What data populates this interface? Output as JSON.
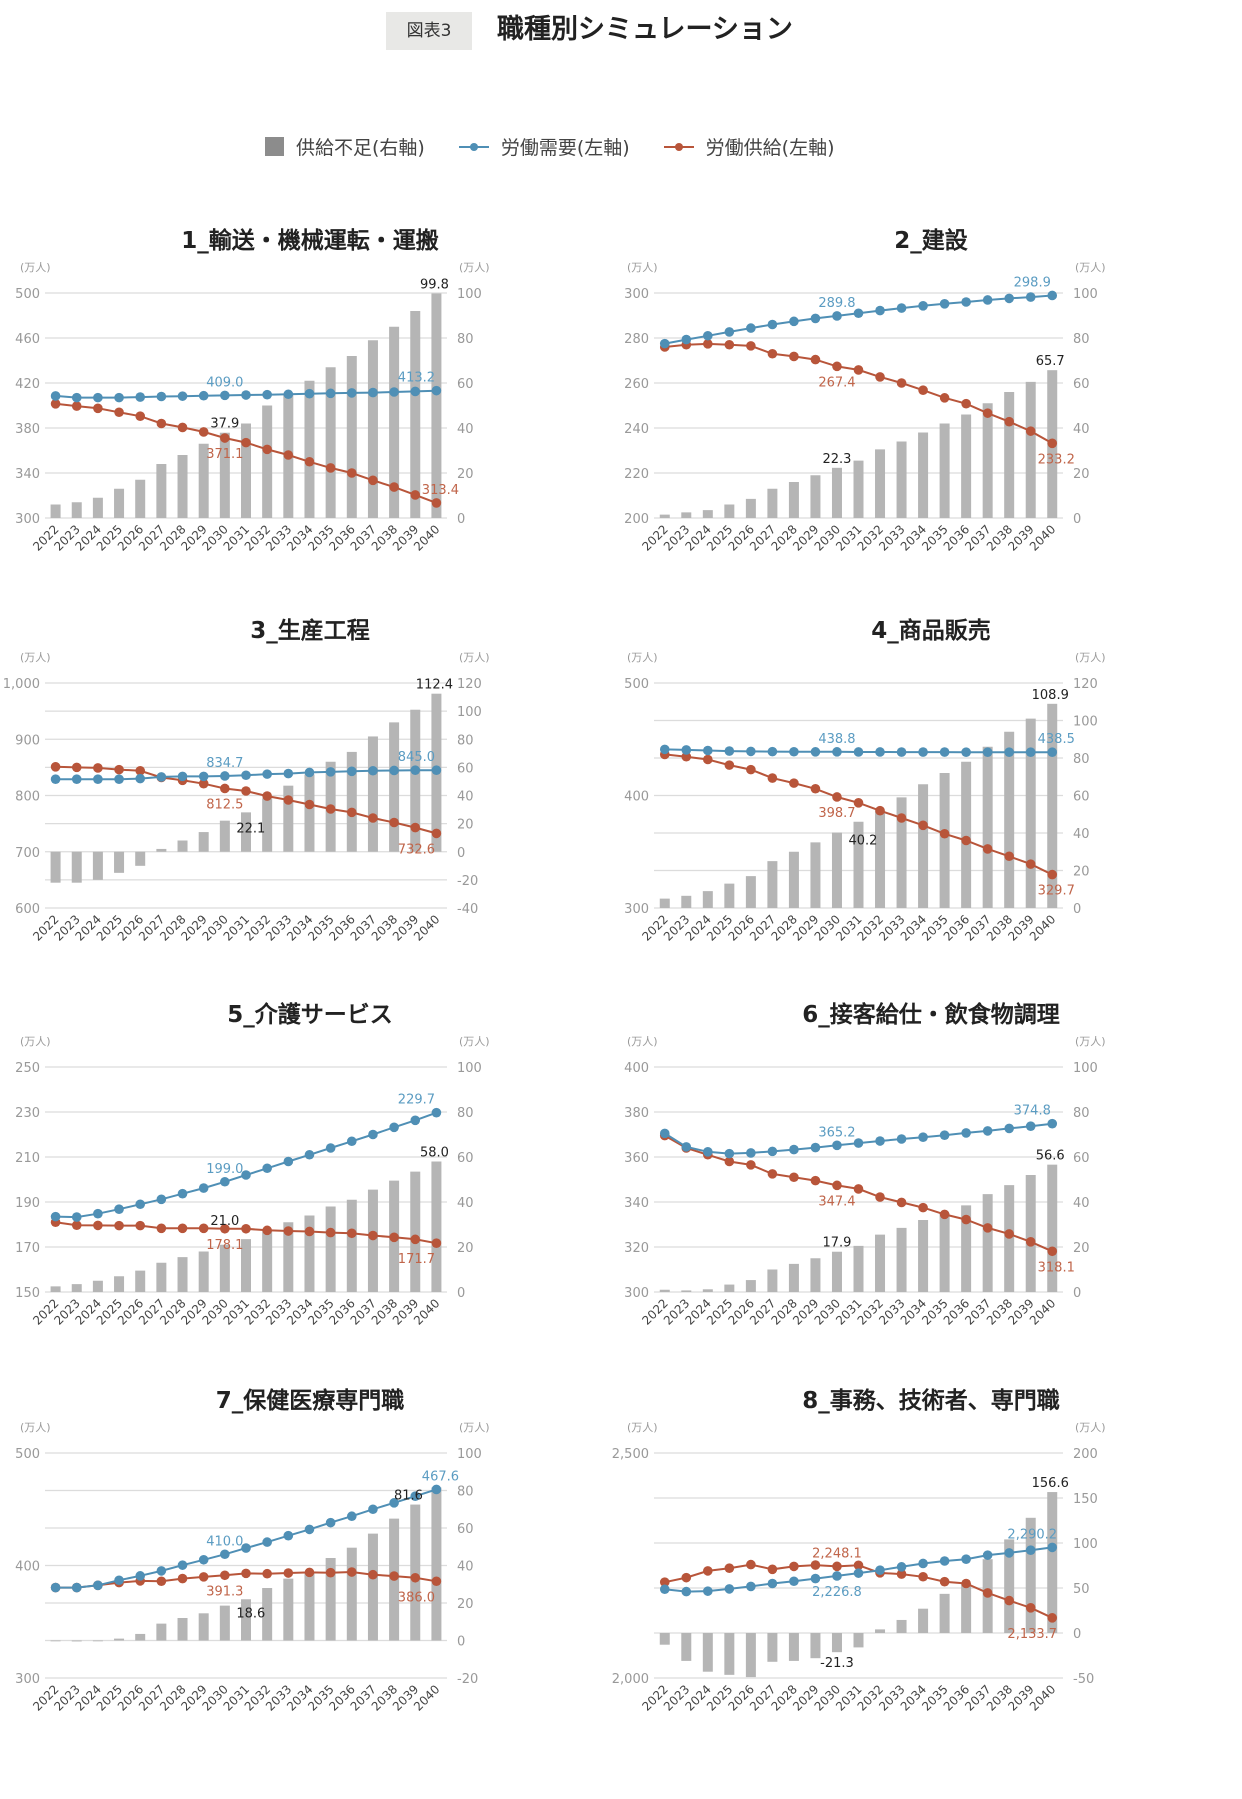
{
  "header": {
    "badge": "図表3",
    "title": "職種別シミュレーション"
  },
  "legend": {
    "shortage": "供給不足(右軸)",
    "demand": "労働需要(左軸)",
    "supply": "労働供給(左軸)"
  },
  "colors": {
    "demand": "#4f8fb5",
    "supply": "#b8553a",
    "bar": "#b5b5b5",
    "demand_label": "#5b9cc2",
    "supply_label": "#c0654a"
  },
  "unit_label": "(万人)",
  "chart_data": [
    {
      "type": "bar+line",
      "title": "1_輸送・機械運転・運搬",
      "x": [
        2022,
        2023,
        2024,
        2025,
        2026,
        2027,
        2028,
        2029,
        2030,
        2031,
        2032,
        2033,
        2034,
        2035,
        2036,
        2037,
        2038,
        2039,
        2040
      ],
      "left_axis": {
        "range": [
          300,
          500
        ],
        "ticks": [
          300,
          340,
          380,
          420,
          460,
          500
        ]
      },
      "right_axis": {
        "range": [
          0,
          100
        ],
        "ticks": [
          0,
          20,
          40,
          60,
          80,
          100
        ]
      },
      "series": [
        {
          "name": "供給不足(右軸)",
          "axis": "right",
          "values": [
            6,
            7,
            9,
            13,
            17,
            24,
            28,
            33,
            37.9,
            42,
            50,
            55,
            61,
            67,
            72,
            79,
            85,
            92,
            99.8
          ]
        },
        {
          "name": "労働需要(左軸)",
          "axis": "left",
          "values": [
            408.5,
            407,
            407,
            407,
            407.5,
            408,
            408.3,
            408.7,
            409.0,
            409.3,
            409.6,
            410,
            410.5,
            410.8,
            411.2,
            411.5,
            412,
            412.5,
            413.2
          ]
        },
        {
          "name": "労働供給(左軸)",
          "axis": "left",
          "values": [
            401.5,
            399.5,
            397.5,
            394,
            390.5,
            384,
            380.5,
            376.5,
            371.1,
            367,
            361,
            356,
            350,
            344.5,
            340,
            333.5,
            327.5,
            320.5,
            313.4
          ]
        }
      ]
    },
    {
      "type": "bar+line",
      "title": "2_建設",
      "x": [
        2022,
        2023,
        2024,
        2025,
        2026,
        2027,
        2028,
        2029,
        2030,
        2031,
        2032,
        2033,
        2034,
        2035,
        2036,
        2037,
        2038,
        2039,
        2040
      ],
      "left_axis": {
        "range": [
          200,
          300
        ],
        "ticks": [
          200,
          220,
          240,
          260,
          280,
          300
        ]
      },
      "right_axis": {
        "range": [
          0,
          100
        ],
        "ticks": [
          0,
          20,
          40,
          60,
          80,
          100
        ]
      },
      "series": [
        {
          "name": "供給不足(右軸)",
          "axis": "right",
          "values": [
            1.5,
            2.5,
            3.5,
            6,
            8.5,
            13,
            16,
            19,
            22.3,
            25.5,
            30.5,
            34,
            38,
            42,
            46,
            51,
            56,
            60.5,
            65.7
          ]
        },
        {
          "name": "労働需要(左軸)",
          "axis": "left",
          "values": [
            277.5,
            279.3,
            281,
            282.7,
            284.4,
            286,
            287.4,
            288.7,
            289.8,
            291,
            292.2,
            293.3,
            294.3,
            295.2,
            296,
            296.9,
            297.6,
            298.2,
            298.9
          ]
        },
        {
          "name": "労働供給(左軸)",
          "axis": "left",
          "values": [
            276,
            277,
            277.4,
            277,
            276.5,
            273,
            271.8,
            270.4,
            267.4,
            265.8,
            262.7,
            260,
            256.8,
            253.4,
            250.8,
            246.6,
            242.8,
            238.6,
            233.2
          ]
        }
      ]
    },
    {
      "type": "bar+line",
      "title": "3_生産工程",
      "x": [
        2022,
        2023,
        2024,
        2025,
        2026,
        2027,
        2028,
        2029,
        2030,
        2031,
        2032,
        2033,
        2034,
        2035,
        2036,
        2037,
        2038,
        2039,
        2040
      ],
      "left_axis": {
        "range": [
          600,
          1000
        ],
        "ticks": [
          600,
          700,
          800,
          900,
          1000
        ]
      },
      "right_axis": {
        "range": [
          -40,
          120
        ],
        "ticks": [
          -40,
          -20,
          0,
          20,
          40,
          60,
          80,
          100,
          120
        ]
      },
      "series": [
        {
          "name": "供給不足(右軸)",
          "axis": "right",
          "values": [
            -22,
            -22,
            -20,
            -15,
            -10,
            2,
            8,
            14,
            22.1,
            28,
            38,
            47,
            55,
            64,
            71,
            82,
            92,
            101,
            112.4
          ]
        },
        {
          "name": "労働需要(左軸)",
          "axis": "left",
          "values": [
            829,
            829,
            829,
            829,
            830,
            833,
            834,
            834,
            834.7,
            836,
            838,
            839,
            841,
            842,
            843,
            844,
            844.5,
            845,
            845.0
          ]
        },
        {
          "name": "労働供給(左軸)",
          "axis": "left",
          "values": [
            851,
            850,
            849,
            846,
            844,
            832,
            827,
            821,
            812.5,
            808,
            799,
            792,
            784,
            776,
            770,
            760,
            752,
            743,
            732.6
          ]
        }
      ]
    },
    {
      "type": "bar+line",
      "title": "4_商品販売",
      "x": [
        2022,
        2023,
        2024,
        2025,
        2026,
        2027,
        2028,
        2029,
        2030,
        2031,
        2032,
        2033,
        2034,
        2035,
        2036,
        2037,
        2038,
        2039,
        2040
      ],
      "left_axis": {
        "range": [
          300,
          500
        ],
        "ticks": [
          300,
          400,
          500
        ]
      },
      "right_axis": {
        "range": [
          0,
          120
        ],
        "ticks": [
          0,
          20,
          40,
          60,
          80,
          100,
          120
        ]
      },
      "series": [
        {
          "name": "供給不足(右軸)",
          "axis": "right",
          "values": [
            5,
            6.5,
            9,
            13,
            17,
            25,
            30,
            35,
            40.2,
            46,
            52,
            59,
            66,
            72,
            78,
            86,
            94,
            101,
            108.9
          ]
        },
        {
          "name": "労働需要(左軸)",
          "axis": "left",
          "values": [
            441,
            440.5,
            440,
            439.5,
            439.2,
            439,
            438.9,
            438.8,
            438.8,
            438.7,
            438.7,
            438.6,
            438.6,
            438.6,
            438.5,
            438.5,
            438.5,
            438.5,
            438.5
          ]
        },
        {
          "name": "労働供給(左軸)",
          "axis": "left",
          "values": [
            436.5,
            434.5,
            432,
            427,
            423,
            415.5,
            411,
            406,
            398.7,
            393.5,
            386.5,
            380,
            373.5,
            366,
            360,
            352.5,
            346,
            339,
            329.7
          ]
        }
      ]
    },
    {
      "type": "bar+line",
      "title": "5_介護サービス",
      "x": [
        2022,
        2023,
        2024,
        2025,
        2026,
        2027,
        2028,
        2029,
        2030,
        2031,
        2032,
        2033,
        2034,
        2035,
        2036,
        2037,
        2038,
        2039,
        2040
      ],
      "left_axis": {
        "range": [
          150,
          250
        ],
        "ticks": [
          150,
          170,
          190,
          210,
          230,
          250
        ]
      },
      "right_axis": {
        "range": [
          0,
          100
        ],
        "ticks": [
          0,
          20,
          40,
          60,
          80,
          100
        ]
      },
      "series": [
        {
          "name": "供給不足(右軸)",
          "axis": "right",
          "values": [
            2.5,
            3.5,
            5,
            7,
            9.5,
            13,
            15.5,
            18,
            21.0,
            23.5,
            27,
            31,
            34,
            38,
            41,
            45.5,
            49.5,
            53.5,
            58.0
          ]
        },
        {
          "name": "労働需要(左軸)",
          "axis": "left",
          "values": [
            183.5,
            183.3,
            184.8,
            186.8,
            189,
            191.2,
            193.7,
            196.2,
            199.0,
            202,
            205,
            208,
            211,
            214,
            217,
            220,
            223.2,
            226.3,
            229.7
          ]
        },
        {
          "name": "労働供給(左軸)",
          "axis": "left",
          "values": [
            181,
            179.7,
            179.6,
            179.5,
            179.5,
            178.3,
            178.3,
            178.3,
            178.1,
            178.1,
            177.4,
            177.1,
            176.9,
            176.4,
            176.1,
            175.1,
            174.3,
            173.4,
            171.7
          ]
        }
      ]
    },
    {
      "type": "bar+line",
      "title": "6_接客給仕・飲食物調理",
      "x": [
        2022,
        2023,
        2024,
        2025,
        2026,
        2027,
        2028,
        2029,
        2030,
        2031,
        2032,
        2033,
        2034,
        2035,
        2036,
        2037,
        2038,
        2039,
        2040
      ],
      "left_axis": {
        "range": [
          300,
          400
        ],
        "ticks": [
          300,
          320,
          340,
          360,
          380,
          400
        ]
      },
      "right_axis": {
        "range": [
          0,
          100
        ],
        "ticks": [
          0,
          20,
          40,
          60,
          80,
          100
        ]
      },
      "series": [
        {
          "name": "供給不足(右軸)",
          "axis": "right",
          "values": [
            1,
            0.7,
            1.2,
            3.3,
            5.3,
            10,
            12.5,
            15,
            17.9,
            20.5,
            25.5,
            28.5,
            32,
            35,
            38.5,
            43.5,
            47.5,
            52,
            56.6
          ]
        },
        {
          "name": "労働需要(左軸)",
          "axis": "left",
          "values": [
            370.5,
            364.5,
            362.3,
            361.5,
            361.8,
            362.5,
            363.3,
            364.2,
            365.2,
            366.2,
            367.1,
            368,
            368.8,
            369.7,
            370.7,
            371.6,
            372.7,
            373.7,
            374.8
          ]
        },
        {
          "name": "労働供給(左軸)",
          "axis": "left",
          "values": [
            369.5,
            364,
            361,
            358,
            356.5,
            352.5,
            351,
            349.5,
            347.4,
            345.8,
            342.2,
            339.8,
            337.5,
            334.5,
            332.2,
            328.5,
            325.8,
            322.3,
            318.1
          ]
        }
      ]
    },
    {
      "type": "bar+line",
      "title": "7_保健医療専門職",
      "x": [
        2022,
        2023,
        2024,
        2025,
        2026,
        2027,
        2028,
        2029,
        2030,
        2031,
        2032,
        2033,
        2034,
        2035,
        2036,
        2037,
        2038,
        2039,
        2040
      ],
      "left_axis": {
        "range": [
          300,
          500
        ],
        "ticks": [
          300,
          400,
          500
        ]
      },
      "right_axis": {
        "range": [
          -20,
          100
        ],
        "ticks": [
          -20,
          0,
          20,
          40,
          60,
          80,
          100
        ]
      },
      "series": [
        {
          "name": "供給不足(右軸)",
          "axis": "right",
          "values": [
            0,
            -0.5,
            0,
            1,
            3.5,
            9,
            12,
            14.5,
            18.6,
            22,
            28,
            33,
            36,
            44,
            49.5,
            57,
            65,
            72.5,
            81.6
          ]
        },
        {
          "name": "労働需要(左軸)",
          "axis": "left",
          "values": [
            380.4,
            380.4,
            382.4,
            386.9,
            390.8,
            395.2,
            400.3,
            405.1,
            410.0,
            415.5,
            420.8,
            426.5,
            432.1,
            438.1,
            443.8,
            450,
            455.7,
            461.6,
            467.6
          ]
        },
        {
          "name": "労働供給(左軸)",
          "axis": "left",
          "values": [
            380.4,
            380.4,
            382.4,
            384.8,
            386.3,
            386,
            388.4,
            389.9,
            391.3,
            393,
            392.7,
            393.3,
            393.9,
            393.6,
            394.2,
            391.8,
            390.6,
            389.1,
            386.0
          ]
        }
      ]
    },
    {
      "type": "bar+line",
      "title": "8_事務、技術者、専門職",
      "x": [
        2022,
        2023,
        2024,
        2025,
        2026,
        2027,
        2028,
        2029,
        2030,
        2031,
        2032,
        2033,
        2034,
        2035,
        2036,
        2037,
        2038,
        2039,
        2040
      ],
      "left_axis": {
        "range": [
          2000,
          2500
        ],
        "ticks": [
          2000,
          2500
        ]
      },
      "right_axis": {
        "range": [
          -50,
          200
        ],
        "ticks": [
          -50,
          0,
          50,
          100,
          150,
          200
        ]
      },
      "series": [
        {
          "name": "供給不足(右軸)",
          "axis": "right",
          "values": [
            -13,
            -31,
            -43,
            -46.5,
            -49,
            -32,
            -31,
            -28,
            -21.3,
            -16,
            4,
            14.5,
            27,
            43.5,
            55,
            82,
            104,
            128,
            156.6
          ]
        },
        {
          "name": "労働需要(左軸)",
          "axis": "left",
          "values": [
            2197.2,
            2192,
            2193,
            2198,
            2203.5,
            2210,
            2215,
            2221,
            2226.8,
            2233,
            2239.6,
            2247,
            2254.5,
            2260,
            2264,
            2273,
            2278,
            2284,
            2290.2
          ]
        },
        {
          "name": "労働供給(左軸)",
          "axis": "left",
          "values": [
            2213,
            2223,
            2238,
            2244,
            2252,
            2241.5,
            2248,
            2251,
            2248.1,
            2250.5,
            2233.6,
            2231,
            2225,
            2214,
            2210,
            2189,
            2172,
            2156,
            2133.7
          ]
        }
      ]
    }
  ]
}
